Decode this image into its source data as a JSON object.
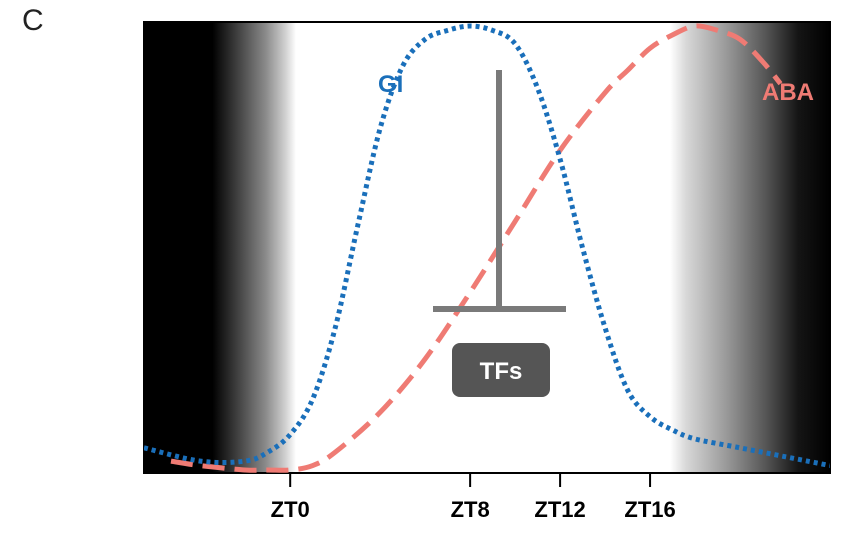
{
  "panel_letter": "C",
  "colors": {
    "gi": "#1a6fba",
    "aba": "#ef7b74",
    "inhibitor": "#7a7a7a",
    "tf_box": "#555555",
    "night": "#000000",
    "day": "#ffffff"
  },
  "labels": {
    "gi": "GI",
    "aba": "ABA",
    "tfs": "TFs"
  },
  "ticks": [
    {
      "label": "ZT0",
      "zt": 0
    },
    {
      "label": "ZT8",
      "zt": 8
    },
    {
      "label": "ZT12",
      "zt": 12
    },
    {
      "label": "ZT16",
      "zt": 16
    }
  ],
  "chart_data": {
    "type": "line",
    "xlabel": "",
    "ylabel": "",
    "x_unit": "ZT",
    "xlim": [
      -6.5,
      24
    ],
    "ylim": [
      0,
      1
    ],
    "series": [
      {
        "name": "GI",
        "style": "dotted",
        "x": [
          -6.5,
          -4,
          -2,
          -1,
          0,
          1,
          2,
          3,
          4,
          5,
          6,
          7,
          8,
          9,
          10,
          11,
          12,
          13,
          14,
          15,
          16,
          17,
          18,
          20,
          22,
          24
        ],
        "y": [
          0.05,
          0.02,
          0.02,
          0.04,
          0.08,
          0.16,
          0.32,
          0.55,
          0.77,
          0.91,
          0.97,
          0.99,
          1.0,
          0.99,
          0.96,
          0.86,
          0.7,
          0.5,
          0.32,
          0.18,
          0.12,
          0.09,
          0.07,
          0.05,
          0.03,
          0.01
        ]
      },
      {
        "name": "ABA",
        "style": "dashed",
        "x": [
          -5.3,
          -4,
          -2,
          -1,
          0,
          1,
          2,
          4,
          6,
          8,
          10,
          12,
          14,
          15,
          16,
          17,
          18,
          19,
          20,
          21,
          21.8
        ],
        "y": [
          0.02,
          0.01,
          0.0,
          0.0,
          0.0,
          0.01,
          0.04,
          0.13,
          0.25,
          0.4,
          0.56,
          0.72,
          0.85,
          0.9,
          0.95,
          0.98,
          1.0,
          0.99,
          0.97,
          0.92,
          0.87
        ]
      }
    ],
    "annotations": [
      "GI",
      "ABA",
      "TFs"
    ]
  }
}
